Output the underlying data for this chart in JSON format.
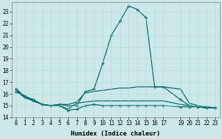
{
  "xlabel": "Humidex (Indice chaleur)",
  "background_color": "#cce8e8",
  "line_color": "#006666",
  "xlim": [
    -0.5,
    23.5
  ],
  "ylim": [
    14.0,
    23.8
  ],
  "yticks": [
    14,
    15,
    16,
    17,
    18,
    19,
    20,
    21,
    22,
    23
  ],
  "xticks": [
    0,
    1,
    2,
    3,
    4,
    5,
    6,
    7,
    8,
    9,
    10,
    11,
    12,
    13,
    14,
    15,
    16,
    17,
    19,
    20,
    21,
    22,
    23
  ],
  "lines": [
    {
      "x": [
        0,
        1,
        2,
        3,
        4,
        5,
        6,
        7,
        8,
        9,
        10,
        11,
        12,
        13,
        14,
        15,
        16,
        17,
        19,
        20,
        21,
        22,
        23
      ],
      "y": [
        16.4,
        15.8,
        15.5,
        15.1,
        15.0,
        15.1,
        15.0,
        15.0,
        16.2,
        16.4,
        18.6,
        21.0,
        22.2,
        23.5,
        23.2,
        22.5,
        16.6,
        16.6,
        15.5,
        15.0,
        14.9,
        14.8,
        14.8
      ],
      "marker": "D",
      "markersize": 2.0,
      "linewidth": 0.9
    },
    {
      "x": [
        0,
        1,
        2,
        3,
        4,
        5,
        6,
        7,
        8,
        9,
        10,
        11,
        12,
        13,
        14,
        15,
        16,
        17,
        19,
        20,
        21,
        22,
        23
      ],
      "y": [
        16.4,
        15.8,
        15.5,
        15.1,
        15.0,
        15.1,
        15.1,
        15.3,
        16.1,
        16.2,
        16.3,
        16.4,
        16.5,
        16.5,
        16.6,
        16.6,
        16.6,
        16.6,
        16.4,
        15.2,
        15.0,
        14.9,
        14.8
      ],
      "marker": null,
      "markersize": 0,
      "linewidth": 0.9
    },
    {
      "x": [
        0,
        1,
        2,
        3,
        4,
        5,
        6,
        7,
        8,
        9,
        10,
        11,
        12,
        13,
        14,
        15,
        16,
        17,
        19,
        20,
        21,
        22,
        23
      ],
      "y": [
        16.3,
        15.7,
        15.4,
        15.1,
        15.0,
        15.0,
        14.7,
        15.2,
        15.3,
        15.4,
        15.4,
        15.4,
        15.4,
        15.4,
        15.4,
        15.4,
        15.4,
        15.4,
        15.1,
        15.0,
        14.9,
        14.8,
        14.8
      ],
      "marker": null,
      "markersize": 0,
      "linewidth": 0.9
    },
    {
      "x": [
        0,
        1,
        2,
        3,
        4,
        5,
        6,
        7,
        8,
        9,
        10,
        11,
        12,
        13,
        14,
        15,
        16,
        17,
        19,
        20,
        21,
        22,
        23
      ],
      "y": [
        16.2,
        15.7,
        15.4,
        15.1,
        15.0,
        15.0,
        14.6,
        14.7,
        15.0,
        15.1,
        15.0,
        15.0,
        15.0,
        15.0,
        15.0,
        15.0,
        15.0,
        15.0,
        14.9,
        14.9,
        14.9,
        14.8,
        14.8
      ],
      "marker": "D",
      "markersize": 2.0,
      "linewidth": 0.9
    }
  ],
  "grid_color": "#b0d8d8",
  "grid_lw": 0.4,
  "tick_fontsize": 5.5,
  "xlabel_fontsize": 6.5
}
